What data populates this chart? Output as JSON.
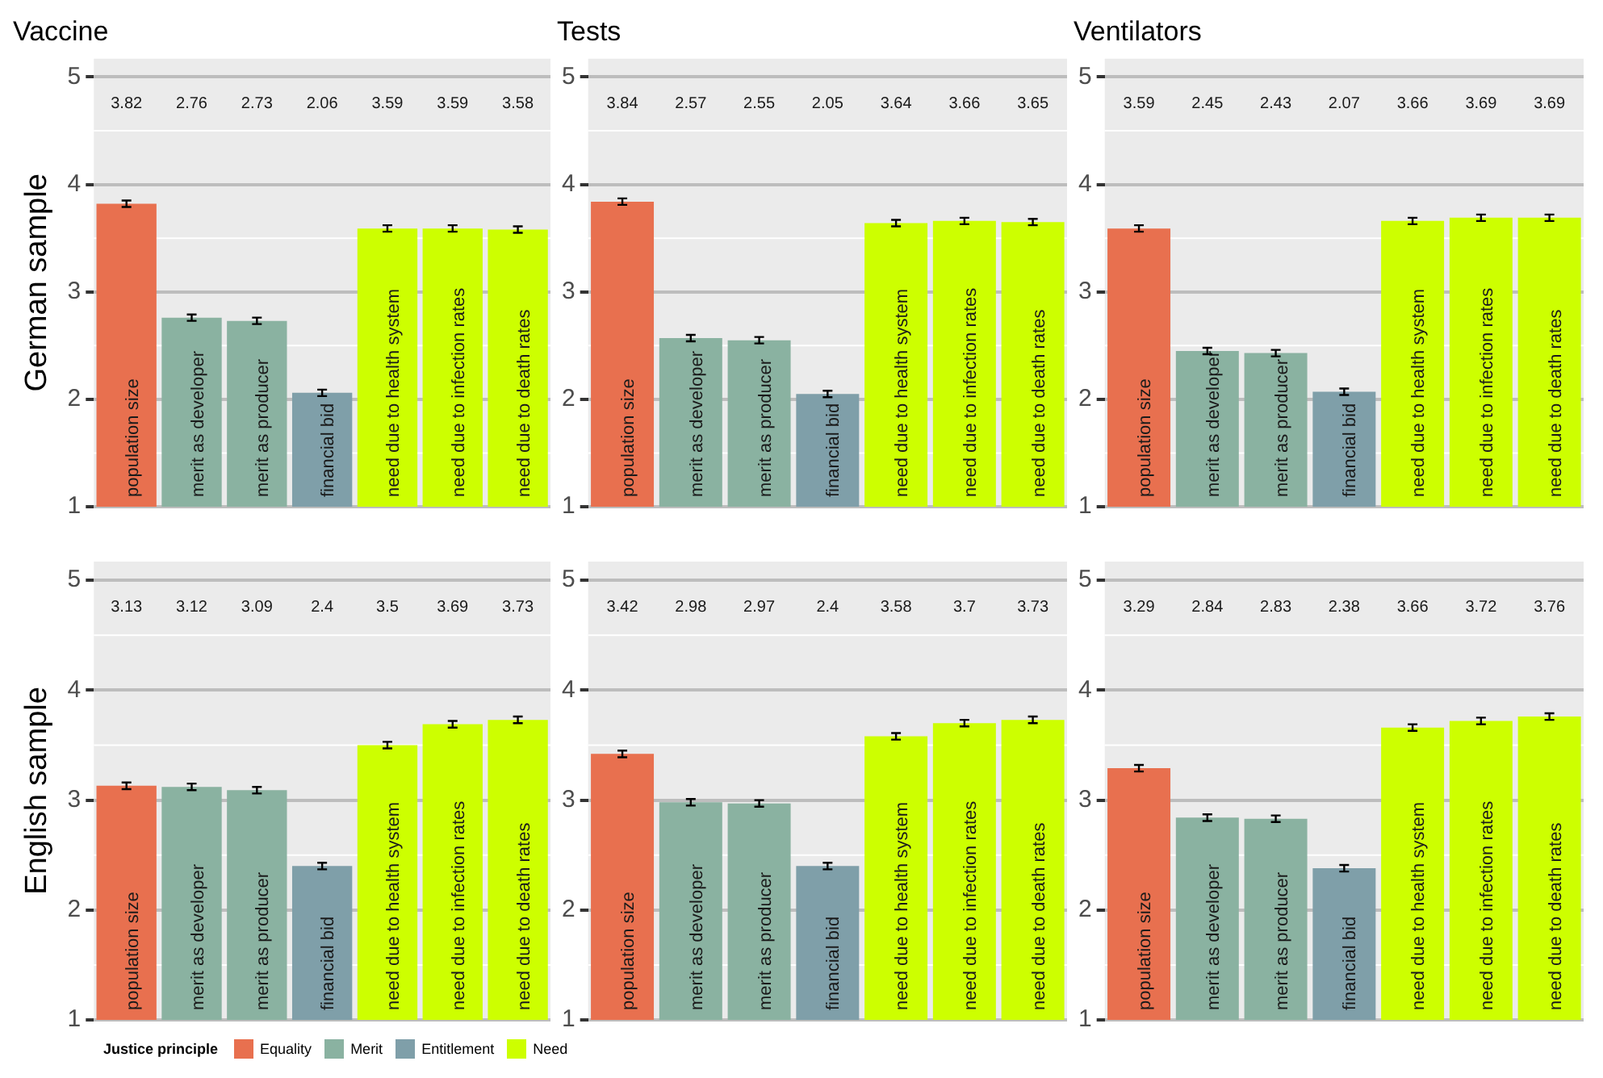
{
  "chart_data": [
    {
      "type": "bar",
      "title": "Vaccine",
      "ylabel": "German sample",
      "legend": "bottom",
      "legend_title": "Justice principle",
      "categories": [
        "population size",
        "merit as developer",
        "merit as producer",
        "financial bid",
        "need due to health system",
        "need due to infection rates",
        "need due to death rates"
      ],
      "ylim": [
        1,
        5.17
      ],
      "yticks": [
        1,
        2,
        3,
        4,
        5
      ],
      "grid": true,
      "tick_labels": "y",
      "annotations": [
        "3.82",
        "2.76",
        "2.73",
        "2.06",
        "3.59",
        "3.59",
        "3.58"
      ],
      "series": [
        {
          "name": "Equality",
          "color": "#e8704f",
          "values": [
            3.82,
            null,
            null,
            null,
            null,
            null,
            null
          ],
          "errors": [
            0.03,
            null,
            null,
            null,
            null,
            null,
            null
          ]
        },
        {
          "name": "Merit",
          "color": "#8ab2a1",
          "values": [
            null,
            2.76,
            2.73,
            null,
            null,
            null,
            null
          ],
          "errors": [
            null,
            0.03,
            0.03,
            null,
            null,
            null,
            null
          ]
        },
        {
          "name": "Entitlement",
          "color": "#7f9fa9",
          "values": [
            null,
            null,
            null,
            2.06,
            null,
            null,
            null
          ],
          "errors": [
            null,
            null,
            null,
            0.03,
            null,
            null,
            null
          ]
        },
        {
          "name": "Need",
          "color": "#cdff00",
          "values": [
            null,
            null,
            null,
            null,
            3.59,
            3.59,
            3.58
          ],
          "errors": [
            null,
            null,
            null,
            null,
            0.03,
            0.03,
            0.03
          ]
        }
      ]
    },
    {
      "type": "bar",
      "title": "Tests",
      "categories": [
        "population size",
        "merit as developer",
        "merit as producer",
        "financial bid",
        "need due to health system",
        "need due to infection rates",
        "need due to death rates"
      ],
      "ylim": [
        1,
        5.17
      ],
      "yticks": [
        1,
        2,
        3,
        4,
        5
      ],
      "grid": true,
      "tick_labels": "y",
      "annotations": [
        "3.84",
        "2.57",
        "2.55",
        "2.05",
        "3.64",
        "3.66",
        "3.65"
      ],
      "series": [
        {
          "color": "#e8704f",
          "values": [
            3.84,
            null,
            null,
            null,
            null,
            null,
            null
          ],
          "errors": [
            0.03,
            null,
            null,
            null,
            null,
            null,
            null
          ]
        },
        {
          "color": "#8ab2a1",
          "values": [
            null,
            2.57,
            2.55,
            null,
            null,
            null,
            null
          ],
          "errors": [
            null,
            0.03,
            0.03,
            null,
            null,
            null,
            null
          ]
        },
        {
          "color": "#7f9fa9",
          "values": [
            null,
            null,
            null,
            2.05,
            null,
            null,
            null
          ],
          "errors": [
            null,
            null,
            null,
            0.03,
            null,
            null,
            null
          ]
        },
        {
          "color": "#cdff00",
          "values": [
            null,
            null,
            null,
            null,
            3.64,
            3.66,
            3.65
          ],
          "errors": [
            null,
            null,
            null,
            null,
            0.03,
            0.03,
            0.03
          ]
        }
      ]
    },
    {
      "type": "bar",
      "title": "Ventilators",
      "categories": [
        "population size",
        "merit as developer",
        "merit as producer",
        "financial bid",
        "need due to health system",
        "need due to infection rates",
        "need due to death rates"
      ],
      "ylim": [
        1,
        5.17
      ],
      "yticks": [
        1,
        2,
        3,
        4,
        5
      ],
      "grid": true,
      "tick_labels": "y",
      "annotations": [
        "3.59",
        "2.45",
        "2.43",
        "2.07",
        "3.66",
        "3.69",
        "3.69"
      ],
      "series": [
        {
          "color": "#e8704f",
          "values": [
            3.59,
            null,
            null,
            null,
            null,
            null,
            null
          ],
          "errors": [
            0.03,
            null,
            null,
            null,
            null,
            null,
            null
          ]
        },
        {
          "color": "#8ab2a1",
          "values": [
            null,
            2.45,
            2.43,
            null,
            null,
            null,
            null
          ],
          "errors": [
            null,
            0.03,
            0.03,
            null,
            null,
            null,
            null
          ]
        },
        {
          "color": "#7f9fa9",
          "values": [
            null,
            null,
            null,
            2.07,
            null,
            null,
            null
          ],
          "errors": [
            null,
            null,
            null,
            0.03,
            null,
            null,
            null
          ]
        },
        {
          "color": "#cdff00",
          "values": [
            null,
            null,
            null,
            null,
            3.66,
            3.69,
            3.69
          ],
          "errors": [
            null,
            null,
            null,
            null,
            0.03,
            0.03,
            0.03
          ]
        }
      ]
    },
    {
      "type": "bar",
      "ylabel": "English sample",
      "categories": [
        "population size",
        "merit as developer",
        "merit as producer",
        "financial bid",
        "need due to health system",
        "need due to infection rates",
        "need due to death rates"
      ],
      "ylim": [
        1,
        5.17
      ],
      "yticks": [
        1,
        2,
        3,
        4,
        5
      ],
      "grid": true,
      "tick_labels": "y",
      "annotations": [
        "3.13",
        "3.12",
        "3.09",
        "2.4",
        "3.5",
        "3.69",
        "3.73"
      ],
      "series": [
        {
          "color": "#e8704f",
          "values": [
            3.13,
            null,
            null,
            null,
            null,
            null,
            null
          ],
          "errors": [
            0.03,
            null,
            null,
            null,
            null,
            null,
            null
          ]
        },
        {
          "color": "#8ab2a1",
          "values": [
            null,
            3.12,
            3.09,
            null,
            null,
            null,
            null
          ],
          "errors": [
            null,
            0.03,
            0.03,
            null,
            null,
            null,
            null
          ]
        },
        {
          "color": "#7f9fa9",
          "values": [
            null,
            null,
            null,
            2.4,
            null,
            null,
            null
          ],
          "errors": [
            null,
            null,
            null,
            0.03,
            null,
            null,
            null
          ]
        },
        {
          "color": "#cdff00",
          "values": [
            null,
            null,
            null,
            null,
            3.5,
            3.69,
            3.73
          ],
          "errors": [
            null,
            null,
            null,
            null,
            0.03,
            0.03,
            0.03
          ]
        }
      ]
    },
    {
      "type": "bar",
      "categories": [
        "population size",
        "merit as developer",
        "merit as producer",
        "financial bid",
        "need due to health system",
        "need due to infection rates",
        "need due to death rates"
      ],
      "ylim": [
        1,
        5.17
      ],
      "yticks": [
        1,
        2,
        3,
        4,
        5
      ],
      "grid": true,
      "tick_labels": "y",
      "annotations": [
        "3.42",
        "2.98",
        "2.97",
        "2.4",
        "3.58",
        "3.7",
        "3.73"
      ],
      "series": [
        {
          "color": "#e8704f",
          "values": [
            3.42,
            null,
            null,
            null,
            null,
            null,
            null
          ],
          "errors": [
            0.03,
            null,
            null,
            null,
            null,
            null,
            null
          ]
        },
        {
          "color": "#8ab2a1",
          "values": [
            null,
            2.98,
            2.97,
            null,
            null,
            null,
            null
          ],
          "errors": [
            null,
            0.03,
            0.03,
            null,
            null,
            null,
            null
          ]
        },
        {
          "color": "#7f9fa9",
          "values": [
            null,
            null,
            null,
            2.4,
            null,
            null,
            null
          ],
          "errors": [
            null,
            null,
            null,
            0.03,
            null,
            null,
            null
          ]
        },
        {
          "color": "#cdff00",
          "values": [
            null,
            null,
            null,
            null,
            3.58,
            3.7,
            3.73
          ],
          "errors": [
            null,
            null,
            null,
            null,
            0.03,
            0.03,
            0.03
          ]
        }
      ]
    },
    {
      "type": "bar",
      "categories": [
        "population size",
        "merit as developer",
        "merit as producer",
        "financial bid",
        "need due to health system",
        "need due to infection rates",
        "need due to death rates"
      ],
      "ylim": [
        1,
        5.17
      ],
      "yticks": [
        1,
        2,
        3,
        4,
        5
      ],
      "grid": true,
      "tick_labels": "y",
      "annotations": [
        "3.29",
        "2.84",
        "2.83",
        "2.38",
        "3.66",
        "3.72",
        "3.76"
      ],
      "series": [
        {
          "color": "#e8704f",
          "values": [
            3.29,
            null,
            null,
            null,
            null,
            null,
            null
          ],
          "errors": [
            0.03,
            null,
            null,
            null,
            null,
            null,
            null
          ]
        },
        {
          "color": "#8ab2a1",
          "values": [
            null,
            2.84,
            2.83,
            null,
            null,
            null,
            null
          ],
          "errors": [
            null,
            0.03,
            0.03,
            null,
            null,
            null,
            null
          ]
        },
        {
          "color": "#7f9fa9",
          "values": [
            null,
            null,
            null,
            2.38,
            null,
            null,
            null
          ],
          "errors": [
            null,
            null,
            null,
            0.03,
            null,
            null,
            null
          ]
        },
        {
          "color": "#cdff00",
          "values": [
            null,
            null,
            null,
            null,
            3.66,
            3.72,
            3.76
          ],
          "errors": [
            null,
            null,
            null,
            null,
            0.03,
            0.03,
            0.03
          ]
        }
      ]
    }
  ]
}
